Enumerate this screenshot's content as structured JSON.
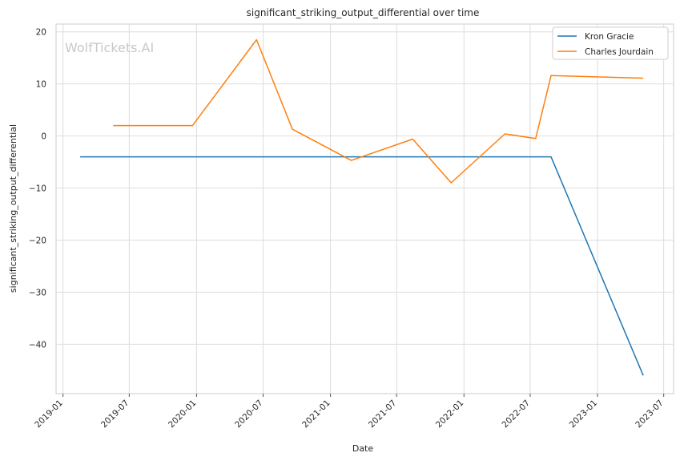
{
  "chart_data": {
    "type": "line",
    "title": "significant_striking_output_differential over time",
    "xlabel": "Date",
    "ylabel": "significant_striking_output_differential",
    "watermark": "WolfTickets.AI",
    "x_ticks": [
      "2019-01",
      "2019-07",
      "2020-01",
      "2020-07",
      "2021-01",
      "2021-07",
      "2022-01",
      "2022-07",
      "2023-01",
      "2023-07"
    ],
    "y_ticks": [
      20,
      10,
      0,
      -10,
      -20,
      -30,
      -40
    ],
    "ylim": [
      -49.5,
      21.5
    ],
    "xlim": [
      "2018-12-13",
      "2023-07-28"
    ],
    "grid": true,
    "legend_position": "top-right",
    "series": [
      {
        "name": "Kron Gracie",
        "color": "#1f77b4",
        "x": [
          "2019-02-17",
          "2022-08-27",
          "2023-05-06"
        ],
        "y": [
          -4,
          -4,
          -46
        ]
      },
      {
        "name": "Charles Jourdain",
        "color": "#ff7f0e",
        "x": [
          "2019-05-18",
          "2019-12-21",
          "2020-06-13",
          "2020-09-19",
          "2021-02-27",
          "2021-08-14",
          "2021-11-27",
          "2022-04-23",
          "2022-07-16",
          "2022-08-27",
          "2023-05-06"
        ],
        "y": [
          2,
          2,
          18.5,
          1.3,
          -4.7,
          -0.6,
          -9,
          0.4,
          -0.5,
          11.6,
          11.1
        ]
      }
    ]
  }
}
